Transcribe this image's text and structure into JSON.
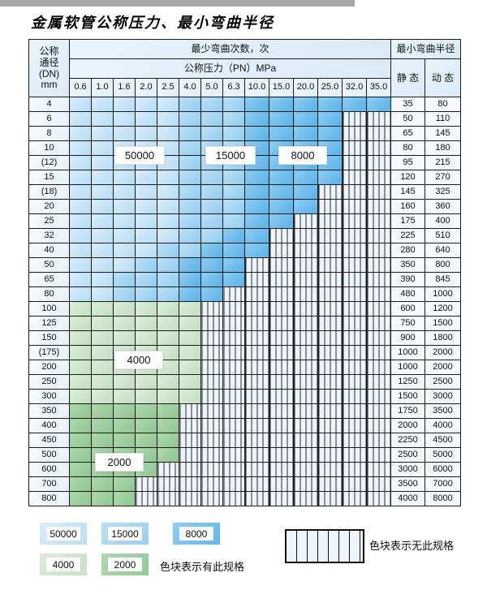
{
  "title": "金属软管公称压力、最小弯曲半径",
  "colors": {
    "zone_50000": "#bcdff5",
    "zone_15000": "#99d0f1",
    "zone_8000": "#62b6e9",
    "zone_4000": "#c6e1c4",
    "zone_2000": "#94c996",
    "no_spec_bg": "#edf4fb",
    "border": "#1c1c1c"
  },
  "chart_data": {
    "type": "table",
    "title": "金属软管公称压力、最小弯曲半径",
    "header": {
      "dn_lines": [
        "公称",
        "通径",
        "(DN)",
        "mm"
      ],
      "cycles_label": "最少弯曲次数，次",
      "radius_label": "最小弯曲半径",
      "pressure_label": "公称压力（PN）MPa",
      "pressure_cols": [
        "0.6",
        "1.0",
        "1.6",
        "2.0",
        "2.5",
        "4.0",
        "5.0",
        "6.3",
        "10.0",
        "15.0",
        "20.0",
        "25.0",
        "32.0",
        "35.0"
      ],
      "static_label": "静 态",
      "dynamic_label": "动 态"
    },
    "zone_legend_map": {
      "L": "50000",
      "M": "15000",
      "D": "8000",
      "G4": "4000",
      "G2": "2000",
      "S": "no-spec"
    },
    "rows": [
      {
        "dn": "4",
        "zones": [
          [
            "L",
            5
          ],
          [
            "M",
            3
          ],
          [
            "D",
            6
          ]
        ],
        "static": "35",
        "dynamic": "80"
      },
      {
        "dn": "6",
        "zones": [
          [
            "L",
            5
          ],
          [
            "M",
            3
          ],
          [
            "D",
            4
          ],
          [
            "S",
            2
          ]
        ],
        "static": "50",
        "dynamic": "110"
      },
      {
        "dn": "8",
        "zones": [
          [
            "L",
            5
          ],
          [
            "M",
            3
          ],
          [
            "D",
            4
          ],
          [
            "S",
            2
          ]
        ],
        "static": "65",
        "dynamic": "145"
      },
      {
        "dn": "10",
        "zones": [
          [
            "L",
            5
          ],
          [
            "M",
            3
          ],
          [
            "D",
            4
          ],
          [
            "S",
            2
          ]
        ],
        "static": "80",
        "dynamic": "180"
      },
      {
        "dn": "(12)",
        "zones": [
          [
            "L",
            5
          ],
          [
            "M",
            3
          ],
          [
            "D",
            4
          ],
          [
            "S",
            2
          ]
        ],
        "static": "95",
        "dynamic": "215"
      },
      {
        "dn": "15",
        "zones": [
          [
            "L",
            5
          ],
          [
            "M",
            3
          ],
          [
            "D",
            4
          ],
          [
            "S",
            2
          ]
        ],
        "static": "120",
        "dynamic": "270"
      },
      {
        "dn": "(18)",
        "zones": [
          [
            "L",
            5
          ],
          [
            "M",
            3
          ],
          [
            "D",
            3
          ],
          [
            "S",
            3
          ]
        ],
        "static": "145",
        "dynamic": "325"
      },
      {
        "dn": "20",
        "zones": [
          [
            "L",
            5
          ],
          [
            "M",
            3
          ],
          [
            "D",
            3
          ],
          [
            "S",
            3
          ]
        ],
        "static": "160",
        "dynamic": "360"
      },
      {
        "dn": "25",
        "zones": [
          [
            "L",
            5
          ],
          [
            "M",
            3
          ],
          [
            "D",
            2
          ],
          [
            "S",
            4
          ]
        ],
        "static": "175",
        "dynamic": "400"
      },
      {
        "dn": "32",
        "zones": [
          [
            "L",
            5
          ],
          [
            "M",
            2
          ],
          [
            "D",
            2
          ],
          [
            "S",
            5
          ]
        ],
        "static": "225",
        "dynamic": "510"
      },
      {
        "dn": "40",
        "zones": [
          [
            "L",
            4
          ],
          [
            "M",
            2
          ],
          [
            "D",
            3
          ],
          [
            "S",
            5
          ]
        ],
        "static": "280",
        "dynamic": "640"
      },
      {
        "dn": "50",
        "zones": [
          [
            "L",
            3
          ],
          [
            "M",
            2
          ],
          [
            "D",
            3
          ],
          [
            "S",
            6
          ]
        ],
        "static": "350",
        "dynamic": "800"
      },
      {
        "dn": "65",
        "zones": [
          [
            "L",
            2
          ],
          [
            "M",
            3
          ],
          [
            "D",
            3
          ],
          [
            "S",
            6
          ]
        ],
        "static": "390",
        "dynamic": "845"
      },
      {
        "dn": "80",
        "zones": [
          [
            "L",
            2
          ],
          [
            "M",
            3
          ],
          [
            "D",
            2
          ],
          [
            "S",
            7
          ]
        ],
        "static": "480",
        "dynamic": "1000"
      },
      {
        "dn": "100",
        "zones": [
          [
            "G4",
            6
          ],
          [
            "S",
            8
          ]
        ],
        "static": "600",
        "dynamic": "1200"
      },
      {
        "dn": "125",
        "zones": [
          [
            "G4",
            6
          ],
          [
            "S",
            8
          ]
        ],
        "static": "750",
        "dynamic": "1500"
      },
      {
        "dn": "150",
        "zones": [
          [
            "G4",
            6
          ],
          [
            "S",
            8
          ]
        ],
        "static": "900",
        "dynamic": "1800"
      },
      {
        "dn": "(175)",
        "zones": [
          [
            "G4",
            6
          ],
          [
            "S",
            8
          ]
        ],
        "static": "1000",
        "dynamic": "2000"
      },
      {
        "dn": "200",
        "zones": [
          [
            "G4",
            6
          ],
          [
            "S",
            8
          ]
        ],
        "static": "1000",
        "dynamic": "2000"
      },
      {
        "dn": "250",
        "zones": [
          [
            "G4",
            6
          ],
          [
            "S",
            8
          ]
        ],
        "static": "1250",
        "dynamic": "2500"
      },
      {
        "dn": "300",
        "zones": [
          [
            "G4",
            6
          ],
          [
            "S",
            8
          ]
        ],
        "static": "1500",
        "dynamic": "3000"
      },
      {
        "dn": "350",
        "zones": [
          [
            "G2",
            5
          ],
          [
            "S",
            9
          ]
        ],
        "static": "1750",
        "dynamic": "3500"
      },
      {
        "dn": "400",
        "zones": [
          [
            "G2",
            5
          ],
          [
            "S",
            9
          ]
        ],
        "static": "2000",
        "dynamic": "4000"
      },
      {
        "dn": "450",
        "zones": [
          [
            "G2",
            5
          ],
          [
            "S",
            9
          ]
        ],
        "static": "2250",
        "dynamic": "4500"
      },
      {
        "dn": "500",
        "zones": [
          [
            "G2",
            5
          ],
          [
            "S",
            9
          ]
        ],
        "static": "2500",
        "dynamic": "5000"
      },
      {
        "dn": "600",
        "zones": [
          [
            "G2",
            4
          ],
          [
            "S",
            10
          ]
        ],
        "static": "3000",
        "dynamic": "6000"
      },
      {
        "dn": "700",
        "zones": [
          [
            "G2",
            3
          ],
          [
            "S",
            11
          ]
        ],
        "static": "3500",
        "dynamic": "7000"
      },
      {
        "dn": "800",
        "zones": [
          [
            "G2",
            3
          ],
          [
            "S",
            11
          ]
        ],
        "static": "4000",
        "dynamic": "8000"
      }
    ]
  },
  "overlays": [
    {
      "id": "ov-50000",
      "text": "50000"
    },
    {
      "id": "ov-15000",
      "text": "15000"
    },
    {
      "id": "ov-8000",
      "text": "8000"
    },
    {
      "id": "ov-4000",
      "text": "4000"
    },
    {
      "id": "ov-2000",
      "text": "2000"
    }
  ],
  "legend": {
    "items": [
      {
        "label": "50000"
      },
      {
        "label": "15000"
      },
      {
        "label": "8000"
      },
      {
        "label": "4000"
      },
      {
        "label": "2000"
      }
    ],
    "has_spec_note": "色块表示有此规格",
    "no_spec_note": "色块表示无此规格"
  }
}
